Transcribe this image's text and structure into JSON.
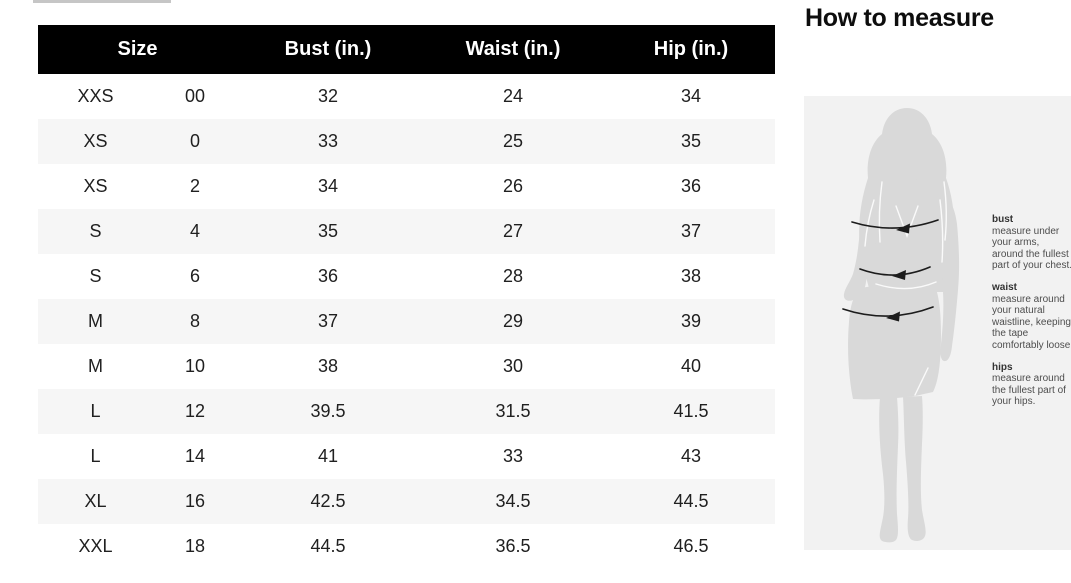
{
  "size_chart": {
    "headers": {
      "size": "Size",
      "bust": "Bust (in.)",
      "waist": "Waist (in.)",
      "hip": "Hip (in.)"
    },
    "rows": [
      [
        "XXS",
        "00",
        "32",
        "24",
        "34"
      ],
      [
        "XS",
        "0",
        "33",
        "25",
        "35"
      ],
      [
        "XS",
        "2",
        "34",
        "26",
        "36"
      ],
      [
        "S",
        "4",
        "35",
        "27",
        "37"
      ],
      [
        "S",
        "6",
        "36",
        "28",
        "38"
      ],
      [
        "M",
        "8",
        "37",
        "29",
        "39"
      ],
      [
        "M",
        "10",
        "38",
        "30",
        "40"
      ],
      [
        "L",
        "12",
        "39.5",
        "31.5",
        "41.5"
      ],
      [
        "L",
        "14",
        "41",
        "33",
        "43"
      ],
      [
        "XL",
        "16",
        "42.5",
        "34.5",
        "44.5"
      ],
      [
        "XXL",
        "18",
        "44.5",
        "36.5",
        "46.5"
      ]
    ]
  },
  "how_to_measure": {
    "title": "How to measure",
    "figure": "woman-silhouette",
    "sections": [
      {
        "label": "bust",
        "lines": [
          "measure under",
          "your arms,",
          "around the fullest",
          "part of your chest."
        ]
      },
      {
        "label": "waist",
        "lines": [
          "measure around",
          "your natural",
          "waistline, keeping",
          "the tape",
          "comfortably loose."
        ]
      },
      {
        "label": "hips",
        "lines": [
          "measure around",
          "the fullest part of",
          "your hips."
        ]
      }
    ]
  },
  "colors": {
    "header_bg": "#000000",
    "header_text": "#ffffff",
    "row_alt_bg": "#f6f6f6",
    "panel_bg": "#f2f2f2",
    "silhouette": "#d9d9d9",
    "arrow": "#1c1c1c"
  }
}
